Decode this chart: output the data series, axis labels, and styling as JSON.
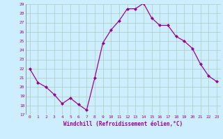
{
  "x": [
    0,
    1,
    2,
    3,
    4,
    5,
    6,
    7,
    8,
    9,
    10,
    11,
    12,
    13,
    14,
    15,
    16,
    17,
    18,
    19,
    20,
    21,
    22,
    23
  ],
  "y": [
    22,
    20.5,
    20,
    19.2,
    18.2,
    18.8,
    18.1,
    17.5,
    21.0,
    24.8,
    26.2,
    27.2,
    28.5,
    28.5,
    29.1,
    27.5,
    26.7,
    26.7,
    25.5,
    25.0,
    24.2,
    22.5,
    21.2,
    20.6
  ],
  "line_color": "#990099",
  "marker": "D",
  "marker_size": 2.0,
  "line_width": 0.9,
  "bg_color": "#cceeff",
  "grid_color": "#aaccbb",
  "xlabel": "Windchill (Refroidissement éolien,°C)",
  "xlabel_color": "#990099",
  "tick_color": "#990099",
  "ylim": [
    17,
    29
  ],
  "xlim": [
    -0.5,
    23.5
  ],
  "yticks": [
    17,
    18,
    19,
    20,
    21,
    22,
    23,
    24,
    25,
    26,
    27,
    28,
    29
  ],
  "xticks": [
    0,
    1,
    2,
    3,
    4,
    5,
    6,
    7,
    8,
    9,
    10,
    11,
    12,
    13,
    14,
    15,
    16,
    17,
    18,
    19,
    20,
    21,
    22,
    23
  ]
}
